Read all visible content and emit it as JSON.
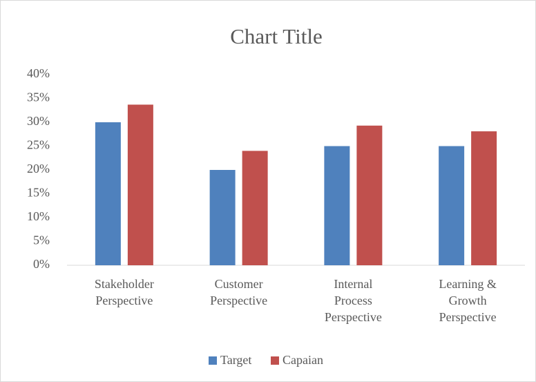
{
  "chart_data": {
    "type": "bar",
    "title": "Chart Title",
    "categories": [
      "Stakeholder Perspective",
      "Customer Perspective",
      "Internal Process Perspective",
      "Learning & Growth Perspective"
    ],
    "series": [
      {
        "name": "Target",
        "color": "#4f81bd",
        "values": [
          30,
          20,
          25,
          25
        ]
      },
      {
        "name": "Capaian",
        "color": "#c0504d",
        "values": [
          33.7,
          24,
          29.3,
          28.1
        ]
      }
    ],
    "ylim": [
      0,
      40
    ],
    "yticks": [
      {
        "value": 0,
        "label": "0%"
      },
      {
        "value": 5,
        "label": "5%"
      },
      {
        "value": 10,
        "label": "10%"
      },
      {
        "value": 15,
        "label": "15%"
      },
      {
        "value": 20,
        "label": "20%"
      },
      {
        "value": 25,
        "label": "25%"
      },
      {
        "value": 30,
        "label": "30%"
      },
      {
        "value": 35,
        "label": "35%"
      },
      {
        "value": 40,
        "label": "40%"
      }
    ],
    "grid": false,
    "legend": "bottom"
  }
}
